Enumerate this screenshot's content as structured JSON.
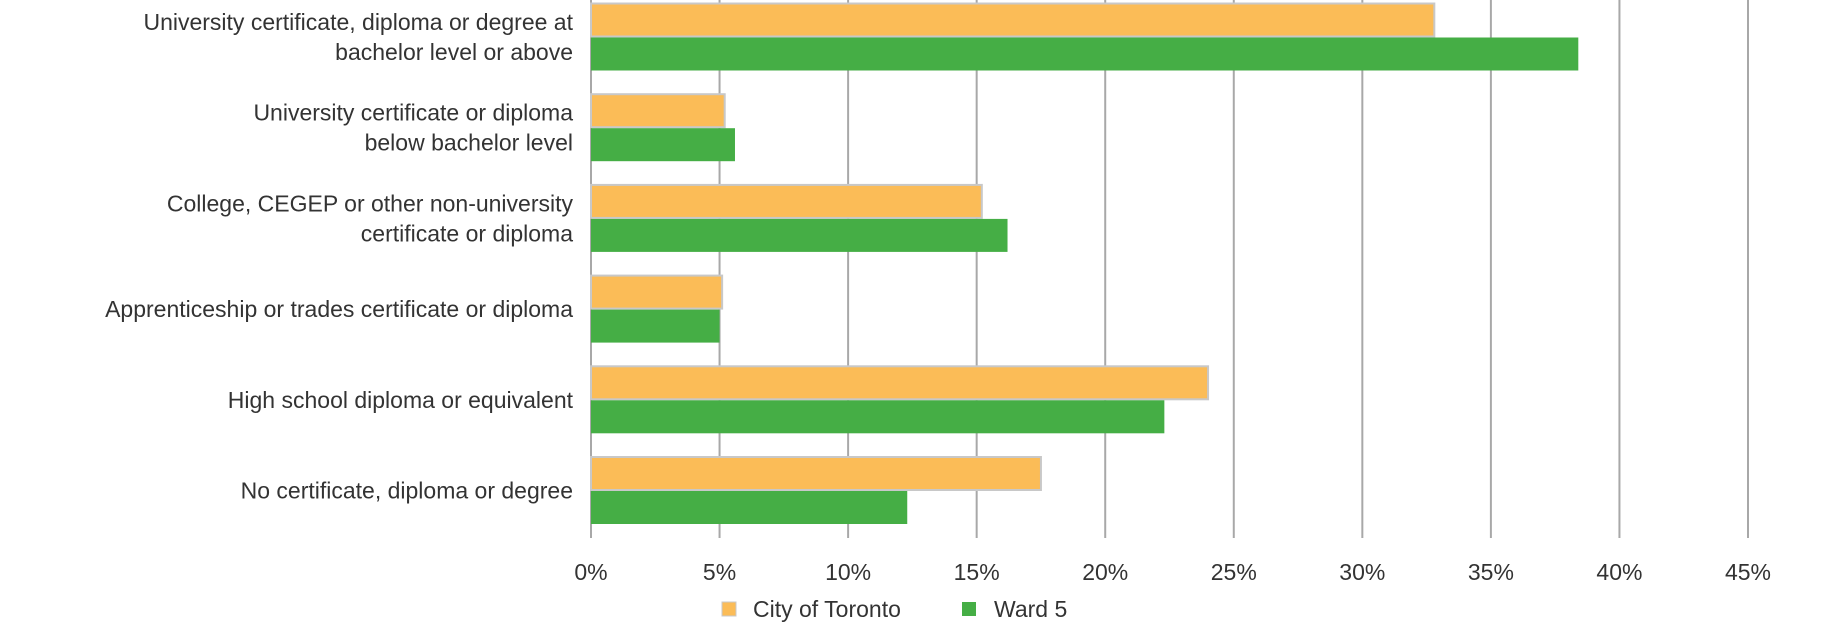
{
  "chart_data": {
    "type": "bar",
    "orientation": "horizontal",
    "categories": [
      [
        "University certificate, diploma or degree at",
        "bachelor level or above"
      ],
      [
        "University certificate or diploma",
        "below bachelor level"
      ],
      [
        "College, CEGEP or other non-university",
        "certificate or diploma"
      ],
      [
        "Apprenticeship or trades certificate or diploma"
      ],
      [
        "High school diploma or equivalent"
      ],
      [
        "No certificate, diploma or degree"
      ]
    ],
    "series": [
      {
        "name": "City of Toronto",
        "color": "#FBBC57",
        "values": [
          32.8,
          5.2,
          15.2,
          5.1,
          24.0,
          17.5
        ]
      },
      {
        "name": "Ward 5",
        "color": "#45AE45",
        "values": [
          38.4,
          5.6,
          16.2,
          5.0,
          22.3,
          12.3
        ]
      }
    ],
    "xlim": [
      0,
      45
    ],
    "xticks": [
      "0%",
      "5%",
      "10%",
      "15%",
      "20%",
      "25%",
      "30%",
      "35%",
      "40%",
      "45%"
    ],
    "grid": "vertical",
    "legend_position": "bottom"
  }
}
